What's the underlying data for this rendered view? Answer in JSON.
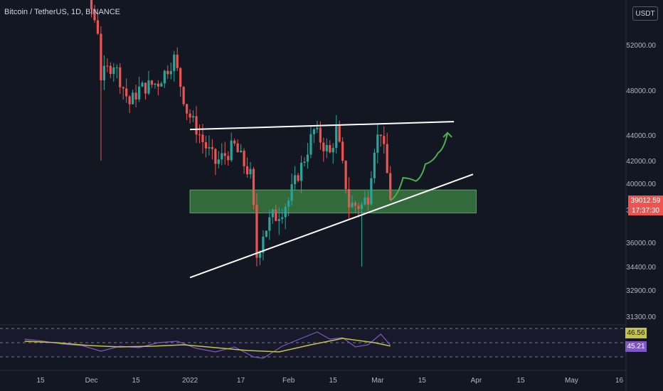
{
  "header": {
    "title": "Bitcoin / TetherUS, 1D, BINANCE",
    "currency": "USDT"
  },
  "price_tags": {
    "last_price": "39012.59",
    "countdown": "17:37:30"
  },
  "rsi_tags": {
    "rsi_value": "46.56",
    "ma_value": "45.21"
  },
  "colors": {
    "background": "#131722",
    "bull": "#26a69a",
    "bear": "#ef5350",
    "support_zone": "#4caf50",
    "projection": "#4caf50",
    "trendline": "#ffffff",
    "rsi_line": "#7e57c2",
    "rsi_ma": "#c6c447",
    "grid": "#1f2330"
  },
  "chart_data": [
    {
      "type": "candlestick",
      "title": "Bitcoin / TetherUS, 1D, BINANCE",
      "grid": false,
      "y_ticks": [
        "52000.00",
        "48000.00",
        "44000.00",
        "42000.00",
        "40000.00",
        "38000.00",
        "36000.00",
        "34400.00",
        "32900.00",
        "31300.00"
      ],
      "x_ticks": [
        "15",
        "Dec",
        "15",
        "2022",
        "17",
        "Feb",
        "15",
        "Mar",
        "15",
        "Apr",
        "15",
        "May",
        "16"
      ],
      "close_path": [
        [
          "2021-11-10",
          65000
        ],
        [
          "2021-11-15",
          63800
        ],
        [
          "2021-11-20",
          58500
        ],
        [
          "2021-11-25",
          57300
        ],
        [
          "2021-11-29",
          57800
        ],
        [
          "2021-12-03",
          53500
        ],
        [
          "2021-12-04",
          49200
        ],
        [
          "2021-12-08",
          50400
        ],
        [
          "2021-12-13",
          46800
        ],
        [
          "2021-12-16",
          48100
        ],
        [
          "2021-12-22",
          48700
        ],
        [
          "2021-12-27",
          50800
        ],
        [
          "2021-12-31",
          46200
        ],
        [
          "2022-01-05",
          43500
        ],
        [
          "2022-01-09",
          41800
        ],
        [
          "2022-01-15",
          43100
        ],
        [
          "2022-01-20",
          40700
        ],
        [
          "2022-01-22",
          35100
        ],
        [
          "2022-01-24",
          36700
        ],
        [
          "2022-01-28",
          37700
        ],
        [
          "2022-02-01",
          38700
        ],
        [
          "2022-02-05",
          41500
        ],
        [
          "2022-02-09",
          44400
        ],
        [
          "2022-02-14",
          42500
        ],
        [
          "2022-02-16",
          44500
        ],
        [
          "2022-02-20",
          38400
        ],
        [
          "2022-02-24",
          38300
        ],
        [
          "2022-02-26",
          39100
        ],
        [
          "2022-02-28",
          43200
        ],
        [
          "2022-03-02",
          44400
        ],
        [
          "2022-03-05",
          39012.59
        ]
      ],
      "annotations": {
        "resistance_line": {
          "from": [
            "2022-01-01",
            44500
          ],
          "to": [
            "2022-03-25",
            45200
          ]
        },
        "rising_support_line": {
          "from": [
            "2022-01-01",
            33700
          ],
          "to": [
            "2022-03-31",
            40800
          ]
        },
        "support_zone": {
          "from": "2022-01-01",
          "to": "2022-04-01",
          "ymin": 37800,
          "ymax": 39500
        },
        "projection_path": [
          [
            "2022-03-05",
            38700
          ],
          [
            "2022-03-09",
            40500
          ],
          [
            "2022-03-13",
            40200
          ],
          [
            "2022-03-16",
            41700
          ],
          [
            "2022-03-20",
            42600
          ],
          [
            "2022-03-23",
            44200
          ]
        ]
      }
    },
    {
      "type": "line",
      "title": "",
      "series": [
        {
          "values": [
            [
              "2021-11-10",
              55
            ],
            [
              "2021-11-16",
              52
            ],
            [
              "2021-11-22",
              48
            ],
            [
              "2021-11-28",
              46
            ],
            [
              "2021-12-04",
              38
            ],
            [
              "2021-12-10",
              45
            ],
            [
              "2021-12-16",
              43
            ],
            [
              "2021-12-22",
              50
            ],
            [
              "2021-12-28",
              52
            ],
            [
              "2022-01-03",
              42
            ],
            [
              "2022-01-09",
              37
            ],
            [
              "2022-01-15",
              44
            ],
            [
              "2022-01-21",
              30
            ],
            [
              "2022-01-24",
              28
            ],
            [
              "2022-01-30",
              45
            ],
            [
              "2022-02-05",
              56
            ],
            [
              "2022-02-10",
              65
            ],
            [
              "2022-02-14",
              55
            ],
            [
              "2022-02-18",
              57
            ],
            [
              "2022-02-22",
              44
            ],
            [
              "2022-02-26",
              47
            ],
            [
              "2022-03-02",
              62
            ],
            [
              "2022-03-05",
              46.56
            ]
          ]
        },
        {
          "values": [
            [
              "2021-11-10",
              52
            ],
            [
              "2021-11-20",
              50
            ],
            [
              "2021-11-30",
              46
            ],
            [
              "2021-12-10",
              44
            ],
            [
              "2021-12-20",
              45
            ],
            [
              "2021-12-30",
              47
            ],
            [
              "2022-01-09",
              43
            ],
            [
              "2022-01-19",
              39
            ],
            [
              "2022-01-29",
              37
            ],
            [
              "2022-02-08",
              47
            ],
            [
              "2022-02-18",
              56
            ],
            [
              "2022-02-28",
              50
            ],
            [
              "2022-03-05",
              45.21
            ]
          ]
        }
      ]
    }
  ]
}
